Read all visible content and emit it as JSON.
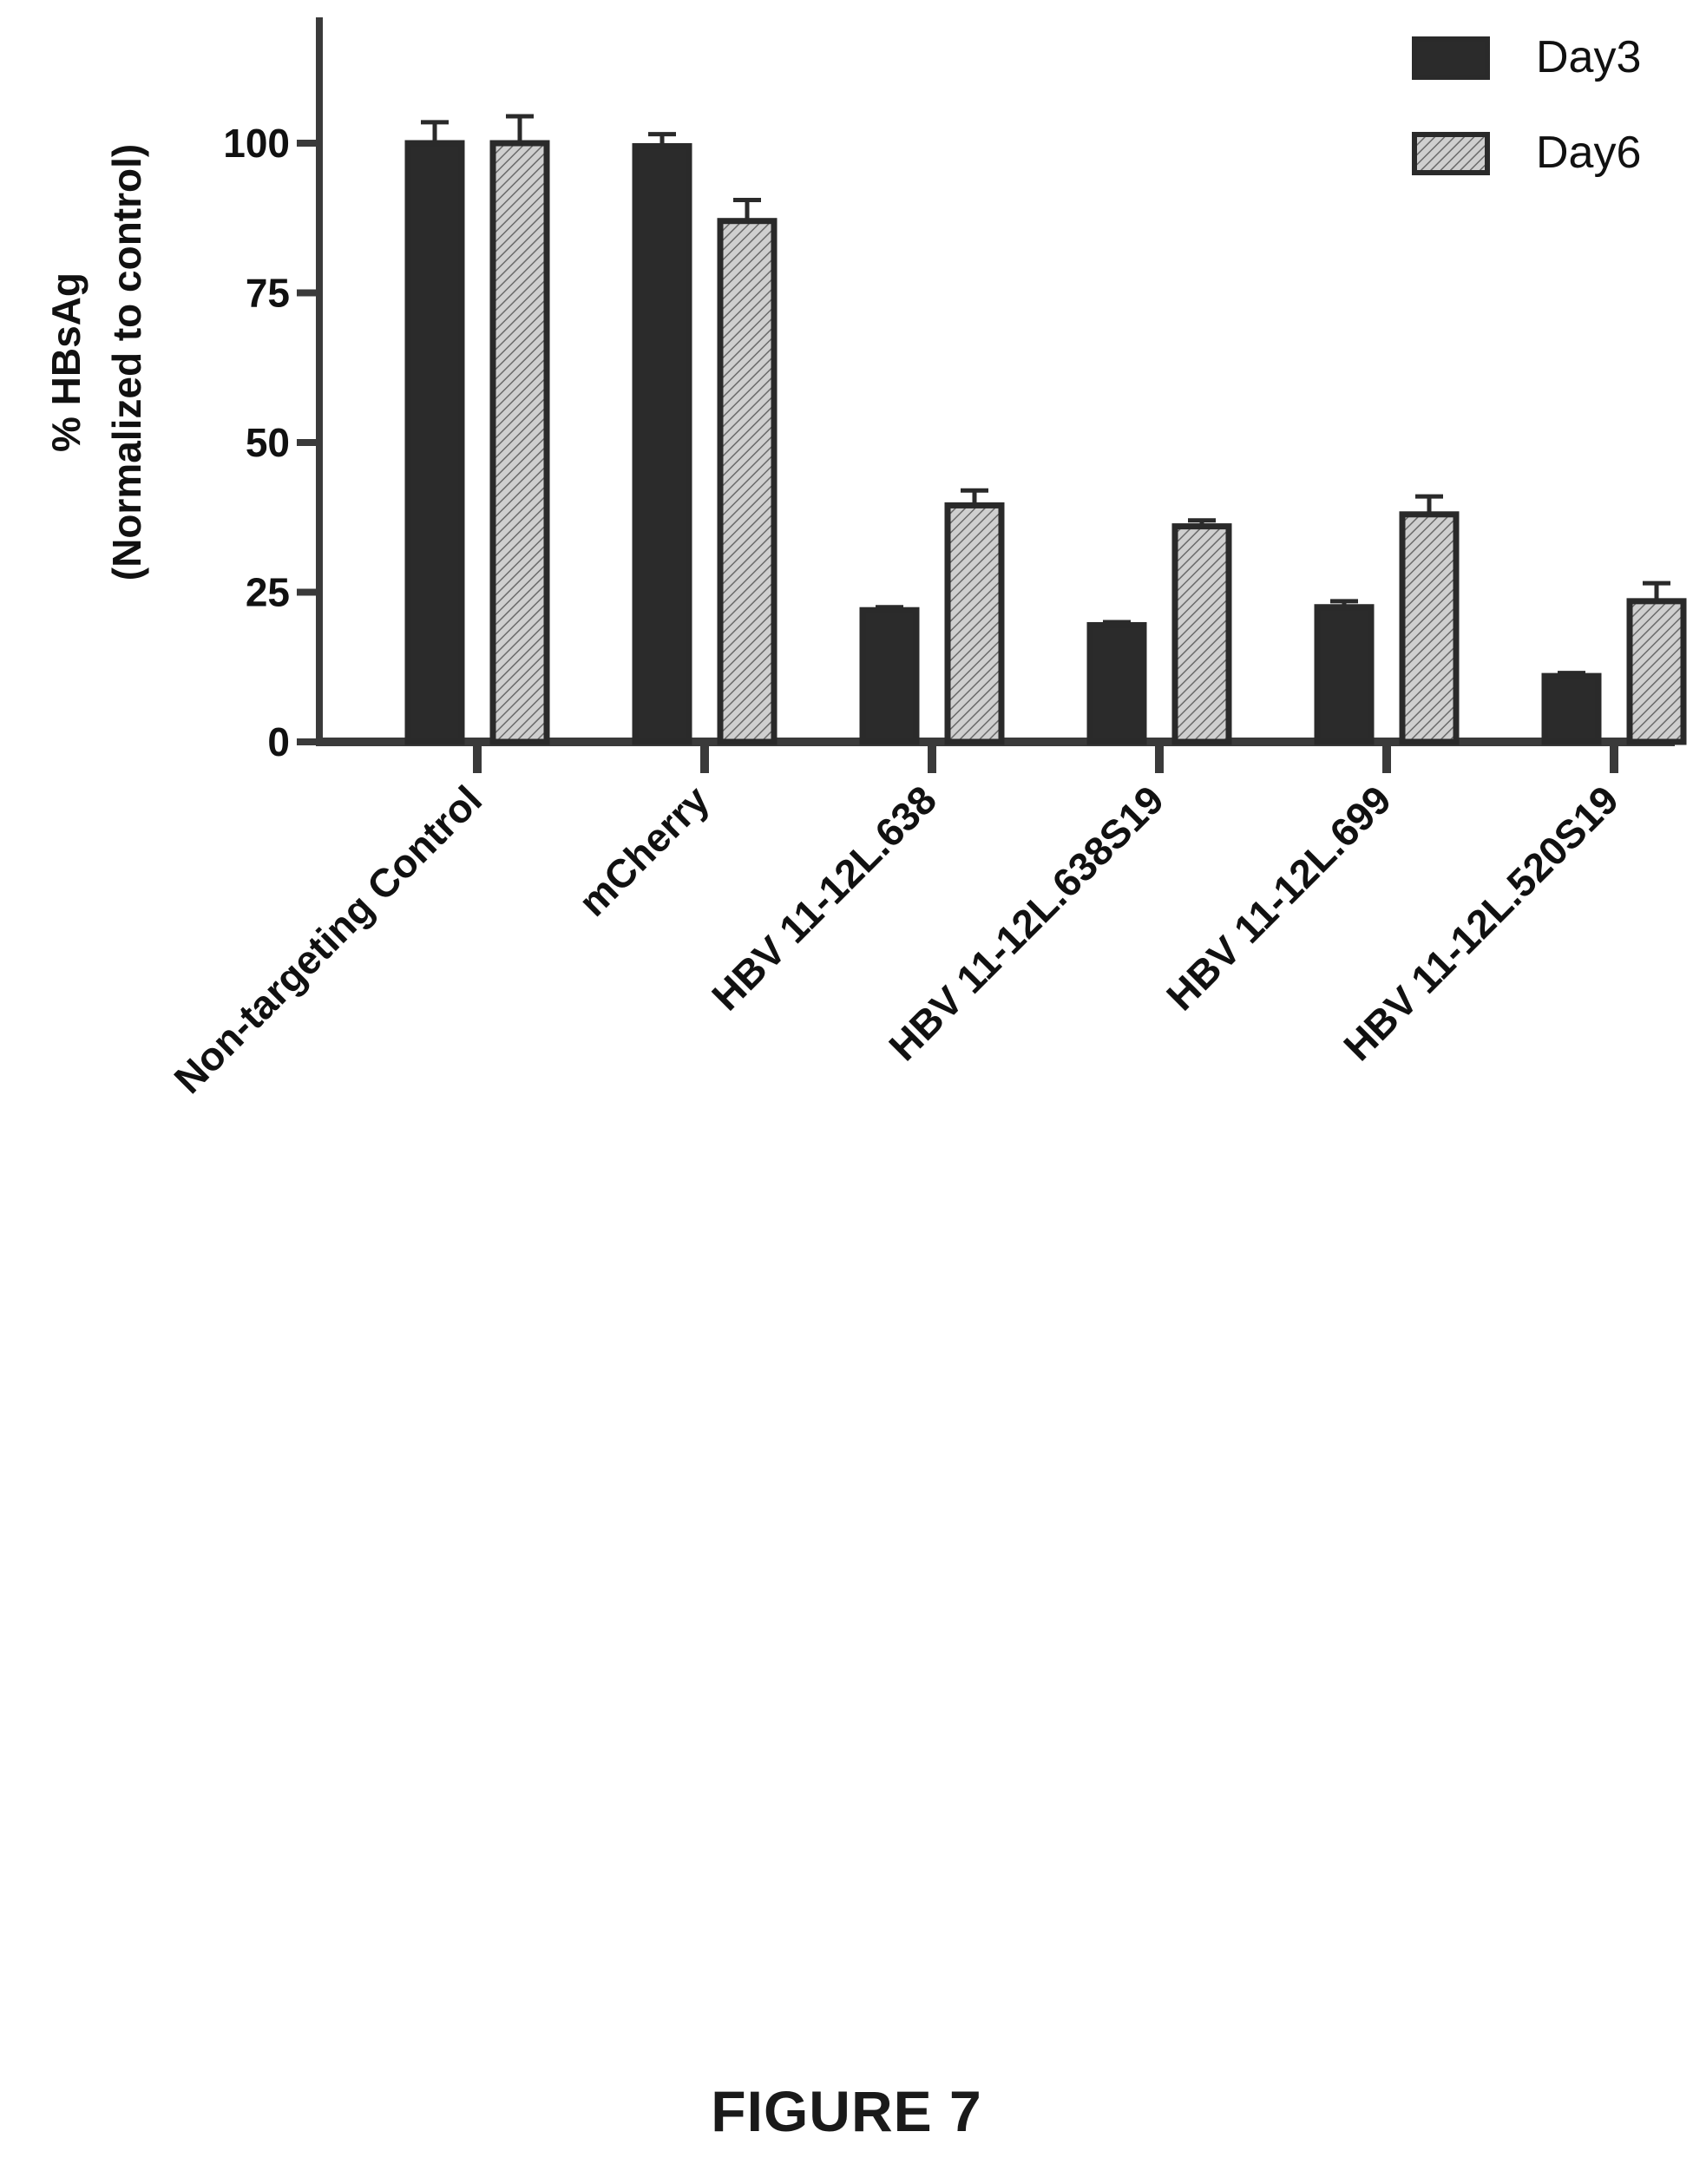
{
  "figure_label": "FIGURE 7",
  "chart_data": {
    "type": "bar",
    "title": "",
    "ylabel_line1": "% HBsAg",
    "ylabel_line2": "(Normalized to control)",
    "xlabel": "",
    "ylim": [
      0,
      120
    ],
    "yticks": [
      0,
      25,
      50,
      75,
      100
    ],
    "categories": [
      "Non-targeting Control",
      "mCherry",
      "HBV 11-12L.638",
      "HBV 11-12L.638S19",
      "HBV 11-12L.699",
      "HBV 11-12L.520S19"
    ],
    "series": [
      {
        "name": "Day3",
        "values": [
          100,
          99.5,
          22,
          19.5,
          22.5,
          11
        ],
        "errors": [
          3.5,
          2,
          0.5,
          0.5,
          1,
          0.5
        ]
      },
      {
        "name": "Day6",
        "values": [
          100,
          87,
          39.5,
          36,
          38,
          23.5
        ],
        "errors": [
          4.5,
          3.5,
          2.5,
          1,
          3,
          3
        ]
      }
    ],
    "colors": {
      "Day3": "#2b2b2b",
      "Day6": "#b5b5b5"
    },
    "legend_position": "top-right",
    "grid": false,
    "error_bars": true
  }
}
